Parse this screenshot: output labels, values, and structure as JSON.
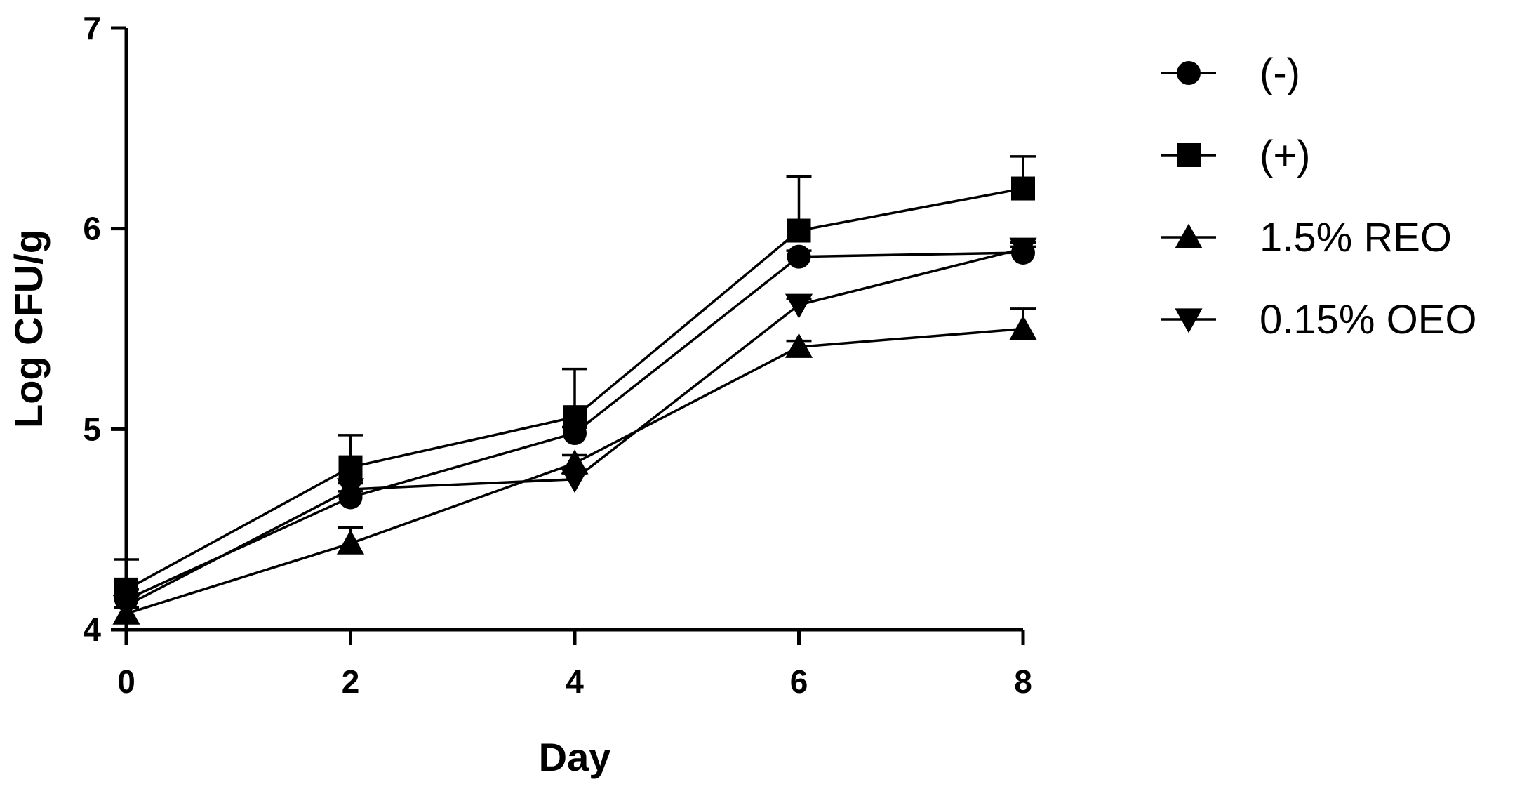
{
  "chart_data": {
    "type": "line",
    "title": "",
    "xlabel": "Day",
    "ylabel": "Log CFU/g",
    "xlim": [
      0,
      8
    ],
    "ylim": [
      4,
      7
    ],
    "x_ticks": [
      0,
      2,
      4,
      6,
      8
    ],
    "y_ticks": [
      4,
      5,
      6,
      7
    ],
    "grid": false,
    "legend_position": "right",
    "x": [
      0,
      2,
      4,
      6,
      8
    ],
    "series": [
      {
        "name": "(-)",
        "marker": "circle",
        "values": [
          4.15,
          4.66,
          4.98,
          5.86,
          5.88
        ],
        "error": [
          0.05,
          0.03,
          0.03,
          0.03,
          0.03
        ]
      },
      {
        "name": "(+)",
        "marker": "square",
        "values": [
          4.2,
          4.81,
          5.06,
          5.99,
          6.2
        ],
        "error": [
          0.15,
          0.16,
          0.24,
          0.27,
          0.16
        ]
      },
      {
        "name": "1.5% REO",
        "marker": "triangle-up",
        "values": [
          4.08,
          4.43,
          4.83,
          5.41,
          5.5
        ],
        "error": [
          0.03,
          0.08,
          0.04,
          0.03,
          0.1
        ]
      },
      {
        "name": "0.15% OEO",
        "marker": "triangle-down",
        "values": [
          4.12,
          4.7,
          4.75,
          5.62,
          5.9
        ],
        "error": [
          0.03,
          0.03,
          0.03,
          0.03,
          0.03
        ]
      }
    ]
  }
}
